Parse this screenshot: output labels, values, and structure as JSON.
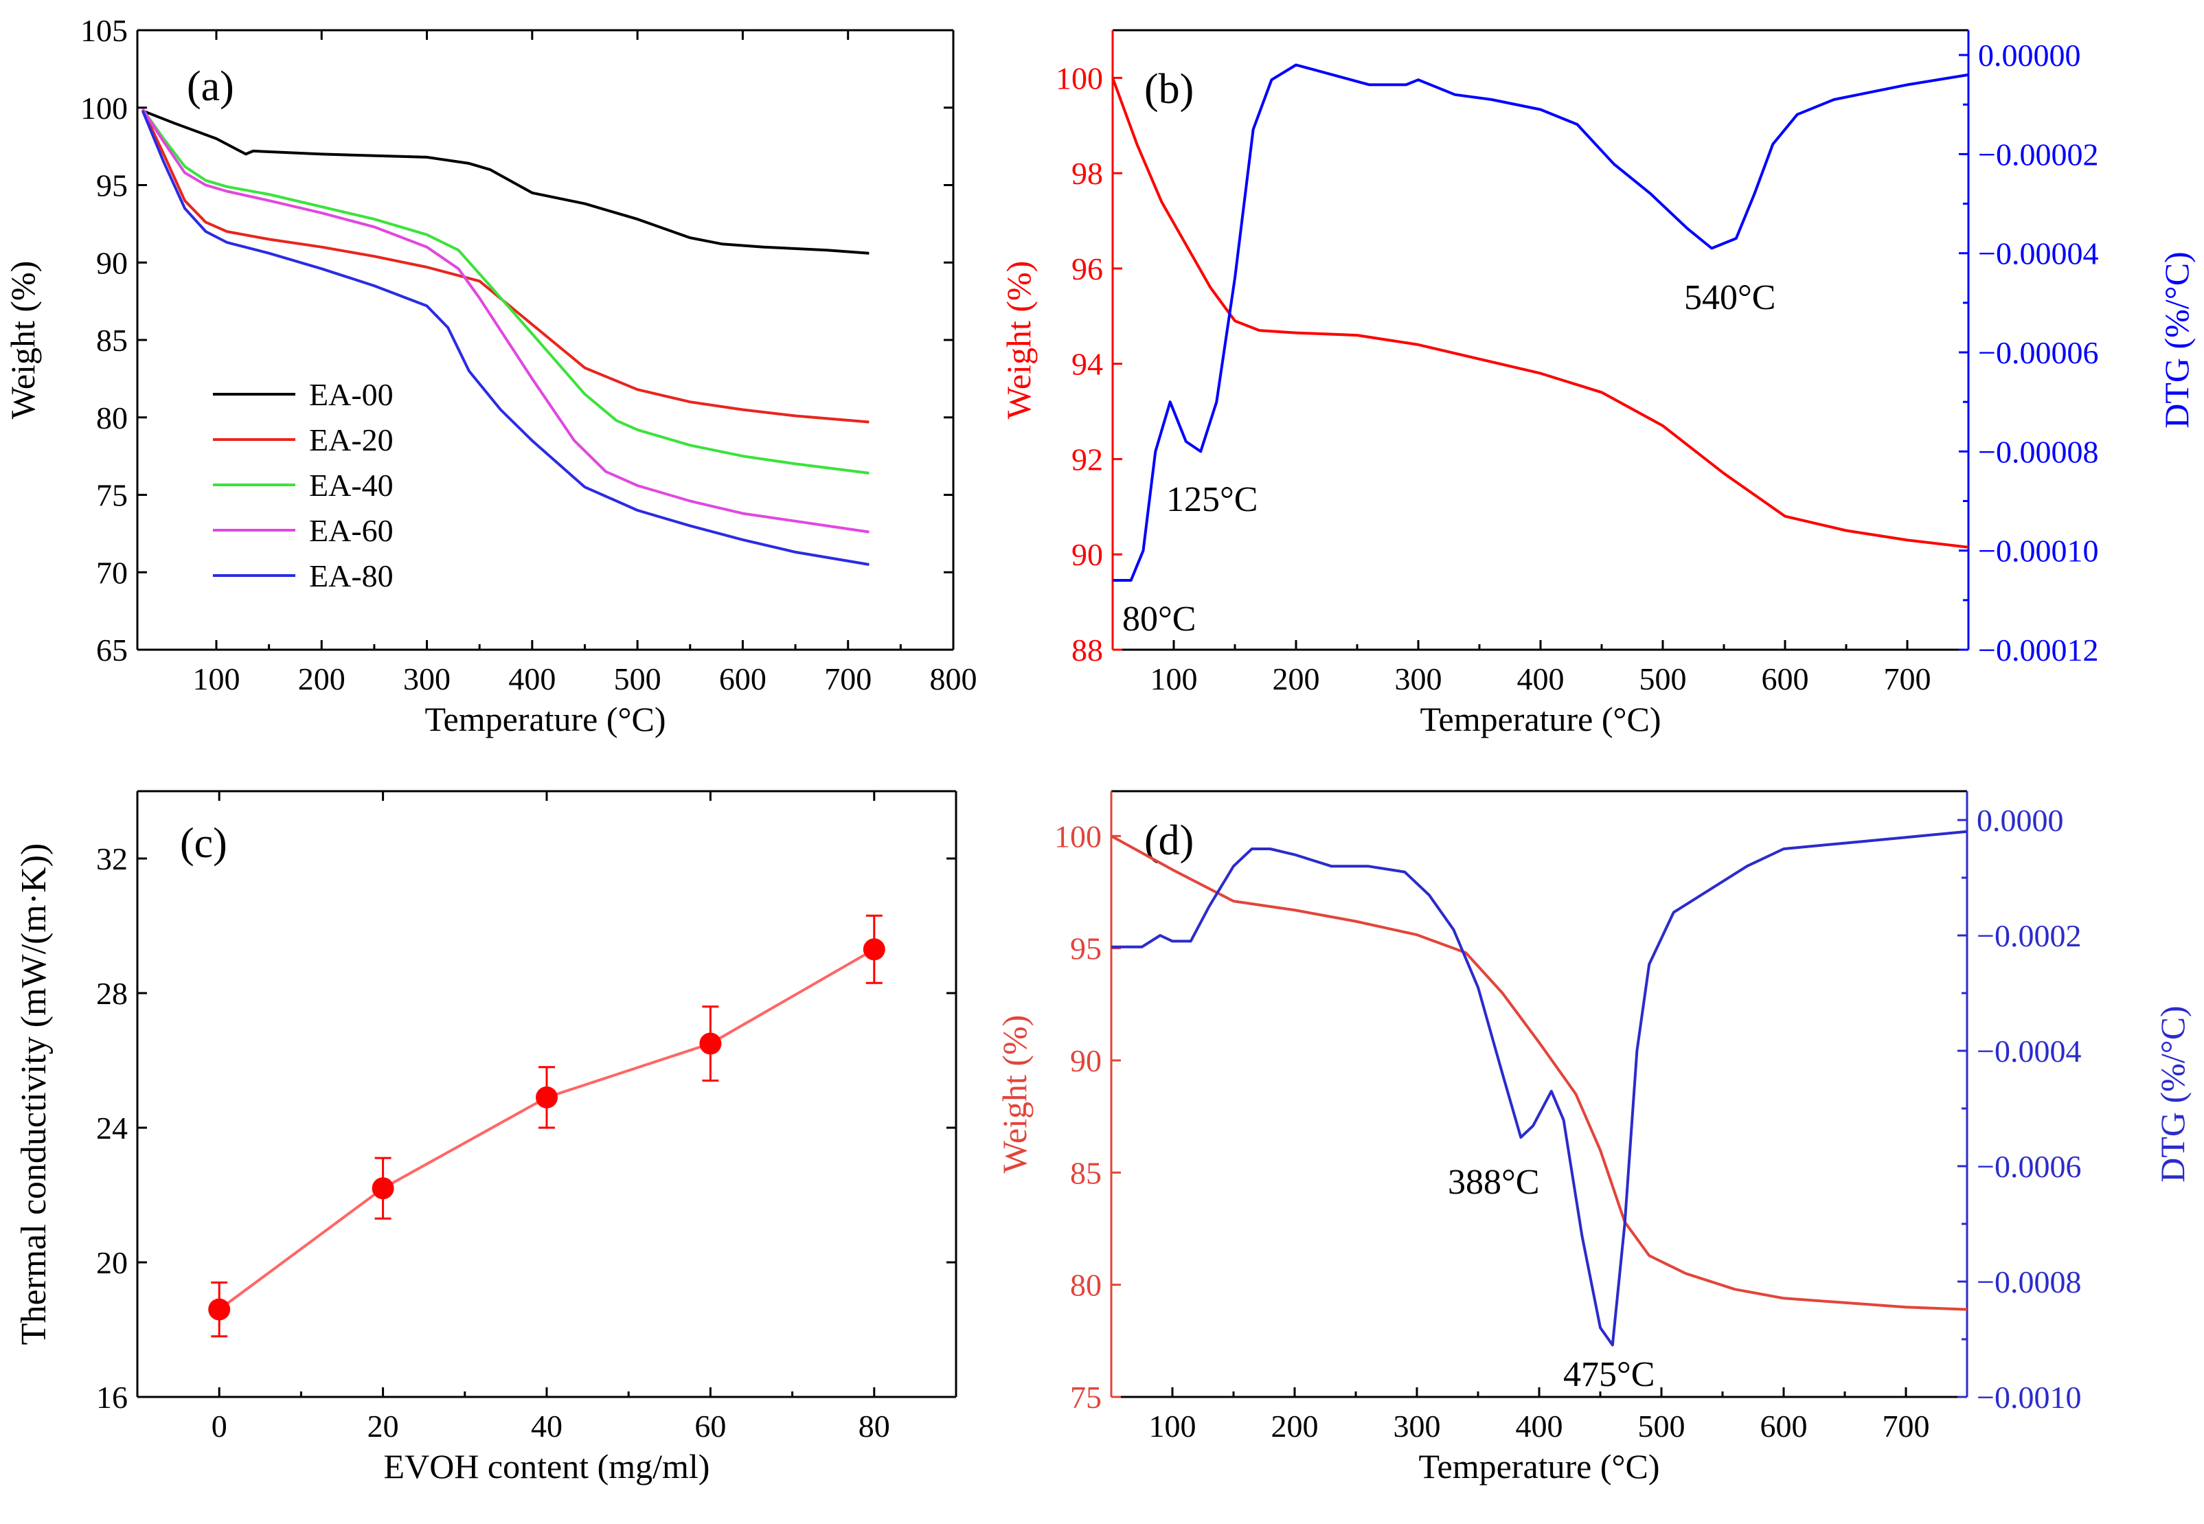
{
  "chart_data": [
    {
      "panel": "(a)",
      "type": "line",
      "xlabel": "Temperature (°C)",
      "ylabel": "Weight (%)",
      "xlim": [
        25,
        800
      ],
      "ylim": [
        65,
        105
      ],
      "xticks": [
        100,
        200,
        300,
        400,
        500,
        600,
        700,
        800
      ],
      "yticks": [
        65,
        70,
        75,
        80,
        85,
        90,
        95,
        100,
        105
      ],
      "legend_position": "bottom-left",
      "series": [
        {
          "name": "EA-00",
          "color": "#000000",
          "x": [
            30,
            60,
            100,
            128,
            135,
            200,
            300,
            340,
            360,
            400,
            450,
            500,
            550,
            580,
            620,
            680,
            720
          ],
          "y": [
            99.8,
            99.0,
            98.0,
            97.0,
            97.2,
            97.0,
            96.8,
            96.4,
            96.0,
            94.5,
            93.8,
            92.8,
            91.6,
            91.2,
            91.0,
            90.8,
            90.6
          ]
        },
        {
          "name": "EA-20",
          "color": "#e8251d",
          "x": [
            30,
            50,
            70,
            90,
            110,
            150,
            200,
            250,
            300,
            350,
            400,
            450,
            500,
            550,
            600,
            650,
            720
          ],
          "y": [
            99.9,
            97.0,
            94.0,
            92.6,
            92.0,
            91.5,
            91.0,
            90.4,
            89.7,
            88.8,
            86.0,
            83.2,
            81.8,
            81.0,
            80.5,
            80.1,
            79.7
          ]
        },
        {
          "name": "EA-40",
          "color": "#3ce23c",
          "x": [
            30,
            50,
            70,
            90,
            110,
            150,
            200,
            250,
            300,
            330,
            360,
            400,
            450,
            480,
            500,
            550,
            600,
            650,
            720
          ],
          "y": [
            99.9,
            98.0,
            96.2,
            95.3,
            94.9,
            94.4,
            93.6,
            92.8,
            91.8,
            90.8,
            88.5,
            85.4,
            81.5,
            79.8,
            79.2,
            78.2,
            77.5,
            77.0,
            76.4
          ]
        },
        {
          "name": "EA-60",
          "color": "#e048e0",
          "x": [
            30,
            50,
            70,
            90,
            110,
            150,
            200,
            250,
            300,
            330,
            350,
            400,
            440,
            470,
            500,
            550,
            600,
            650,
            720
          ],
          "y": [
            99.9,
            97.8,
            95.8,
            95.0,
            94.6,
            94.0,
            93.2,
            92.3,
            91.0,
            89.6,
            87.7,
            82.5,
            78.5,
            76.5,
            75.6,
            74.6,
            73.8,
            73.3,
            72.6
          ]
        },
        {
          "name": "EA-80",
          "color": "#2b2be3",
          "x": [
            30,
            50,
            70,
            90,
            110,
            150,
            200,
            250,
            300,
            320,
            340,
            370,
            400,
            450,
            500,
            550,
            600,
            650,
            720
          ],
          "y": [
            99.8,
            96.5,
            93.5,
            92.0,
            91.3,
            90.6,
            89.6,
            88.5,
            87.2,
            85.8,
            83.0,
            80.5,
            78.5,
            75.5,
            74.0,
            73.0,
            72.1,
            71.3,
            70.5
          ]
        }
      ]
    },
    {
      "panel": "(b)",
      "type": "line",
      "xlabel": "Temperature (°C)",
      "ylabel": "Weight (%)",
      "y2label": "DTG (%/°C)",
      "xlim": [
        50,
        750
      ],
      "ylim": [
        88,
        101
      ],
      "y2lim": [
        -0.00012,
        5e-06
      ],
      "xticks": [
        100,
        200,
        300,
        400,
        500,
        600,
        700
      ],
      "yticks": [
        88,
        90,
        92,
        94,
        96,
        98,
        100
      ],
      "y2ticks": [
        0,
        -2e-05,
        -4e-05,
        -6e-05,
        -8e-05,
        -0.0001,
        -0.00012
      ],
      "y2ticklabels": [
        "0.00000",
        "−0.00002",
        "−0.00004",
        "−0.00006",
        "−0.00008",
        "−0.00010",
        "−0.00012"
      ],
      "annotations": [
        "540°C",
        "125°C",
        "80°C"
      ],
      "series": [
        {
          "name": "",
          "axis": "left",
          "color": "#ff0000",
          "x": [
            50,
            70,
            90,
            110,
            130,
            150,
            170,
            200,
            250,
            300,
            350,
            400,
            450,
            500,
            550,
            600,
            650,
            700,
            750
          ],
          "y": [
            100.0,
            98.6,
            97.4,
            96.5,
            95.6,
            94.9,
            94.7,
            94.65,
            94.6,
            94.4,
            94.1,
            93.8,
            93.4,
            92.7,
            91.7,
            90.8,
            90.5,
            90.3,
            90.15
          ]
        },
        {
          "name": "",
          "axis": "right",
          "color": "#0000ff",
          "x": [
            50,
            65,
            75,
            85,
            97,
            110,
            122,
            135,
            150,
            165,
            180,
            200,
            230,
            260,
            290,
            300,
            330,
            360,
            400,
            430,
            460,
            490,
            520,
            540,
            560,
            575,
            590,
            610,
            640,
            660,
            700,
            750
          ],
          "y": [
            -0.000106,
            -0.000106,
            -0.0001,
            -8e-05,
            -7e-05,
            -7.8e-05,
            -8e-05,
            -7e-05,
            -4.5e-05,
            -1.5e-05,
            -5e-06,
            -2e-06,
            -4e-06,
            -6e-06,
            -6e-06,
            -5e-06,
            -8e-06,
            -9e-06,
            -1.1e-05,
            -1.4e-05,
            -2.2e-05,
            -2.8e-05,
            -3.5e-05,
            -3.9e-05,
            -3.7e-05,
            -2.8e-05,
            -1.8e-05,
            -1.2e-05,
            -9e-06,
            -8e-06,
            -6e-06,
            -4e-06
          ]
        }
      ]
    },
    {
      "panel": "(c)",
      "type": "line",
      "xlabel": "EVOH content (mg/ml)",
      "ylabel": "Thermal conductivity (mW/(m·K))",
      "xlim": [
        -10,
        90
      ],
      "ylim": [
        16,
        34
      ],
      "xticks": [
        0,
        20,
        40,
        60,
        80
      ],
      "yticks": [
        16,
        20,
        24,
        28,
        32
      ],
      "series": [
        {
          "name": "",
          "color": "#ff0000",
          "x": [
            0,
            20,
            40,
            60,
            80
          ],
          "y": [
            18.6,
            22.2,
            24.9,
            26.5,
            29.3
          ],
          "err": [
            0.8,
            0.9,
            0.9,
            1.1,
            1.0
          ]
        }
      ]
    },
    {
      "panel": "(d)",
      "type": "line",
      "xlabel": "Temperature (°C)",
      "ylabel": "Weight (%)",
      "y2label": "DTG (%/°C)",
      "xlim": [
        50,
        750
      ],
      "ylim": [
        75,
        102
      ],
      "y2lim": [
        -0.001,
        5e-05
      ],
      "xticks": [
        100,
        200,
        300,
        400,
        500,
        600,
        700
      ],
      "yticks": [
        75,
        80,
        85,
        90,
        95,
        100
      ],
      "y2ticks": [
        0,
        -0.0002,
        -0.0004,
        -0.0006,
        -0.0008,
        -0.001
      ],
      "y2ticklabels": [
        "0.0000",
        "−0.0002",
        "−0.0004",
        "−0.0006",
        "−0.0008",
        "−0.0010"
      ],
      "annotations": [
        "388°C",
        "475°C"
      ],
      "series": [
        {
          "name": "",
          "axis": "left",
          "color": "#e2453b",
          "x": [
            50,
            100,
            150,
            200,
            250,
            300,
            340,
            370,
            400,
            430,
            450,
            470,
            490,
            520,
            560,
            600,
            650,
            700,
            750
          ],
          "y": [
            100.0,
            98.5,
            97.1,
            96.7,
            96.2,
            95.6,
            94.8,
            93.0,
            90.8,
            88.5,
            86.0,
            82.8,
            81.3,
            80.5,
            79.8,
            79.4,
            79.2,
            79.0,
            78.9
          ]
        },
        {
          "name": "",
          "axis": "right",
          "color": "#2b2bcc",
          "x": [
            50,
            75,
            90,
            100,
            115,
            130,
            150,
            165,
            180,
            200,
            230,
            260,
            290,
            310,
            330,
            350,
            370,
            385,
            395,
            410,
            420,
            435,
            450,
            460,
            470,
            480,
            490,
            510,
            540,
            570,
            600,
            650,
            700,
            750
          ],
          "y": [
            -0.00022,
            -0.00022,
            -0.0002,
            -0.00021,
            -0.00021,
            -0.00015,
            -8e-05,
            -5e-05,
            -5e-05,
            -6e-05,
            -8e-05,
            -8e-05,
            -9e-05,
            -0.00013,
            -0.00019,
            -0.00029,
            -0.00044,
            -0.00055,
            -0.00053,
            -0.00047,
            -0.00052,
            -0.00072,
            -0.00088,
            -0.00091,
            -0.0007,
            -0.0004,
            -0.00025,
            -0.00016,
            -0.00012,
            -8e-05,
            -5e-05,
            -4e-05,
            -3e-05,
            -2e-05
          ]
        }
      ]
    }
  ]
}
